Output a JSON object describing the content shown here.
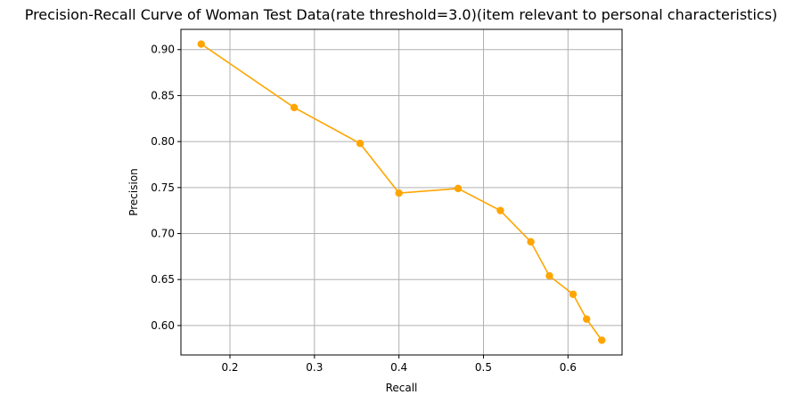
{
  "chart_data": {
    "type": "line",
    "title": "Precision-Recall Curve of Woman Test Data(rate threshold=3.0)(item relevant to personal characteristics)",
    "xlabel": "Recall",
    "ylabel": "Precision",
    "xlim": [
      0.142,
      0.664
    ],
    "ylim": [
      0.568,
      0.922
    ],
    "xticks": [
      0.2,
      0.3,
      0.4,
      0.5,
      0.6
    ],
    "xtick_labels": [
      "0.2",
      "0.3",
      "0.4",
      "0.5",
      "0.6"
    ],
    "yticks": [
      0.6,
      0.65,
      0.7,
      0.75,
      0.8,
      0.85,
      0.9
    ],
    "ytick_labels": [
      "0.60",
      "0.65",
      "0.70",
      "0.75",
      "0.80",
      "0.85",
      "0.90"
    ],
    "grid": true,
    "color": "#ffa500",
    "x": [
      0.166,
      0.276,
      0.354,
      0.4,
      0.47,
      0.52,
      0.556,
      0.578,
      0.606,
      0.622,
      0.64
    ],
    "y": [
      0.906,
      0.837,
      0.798,
      0.744,
      0.749,
      0.725,
      0.691,
      0.654,
      0.634,
      0.607,
      0.584
    ]
  }
}
